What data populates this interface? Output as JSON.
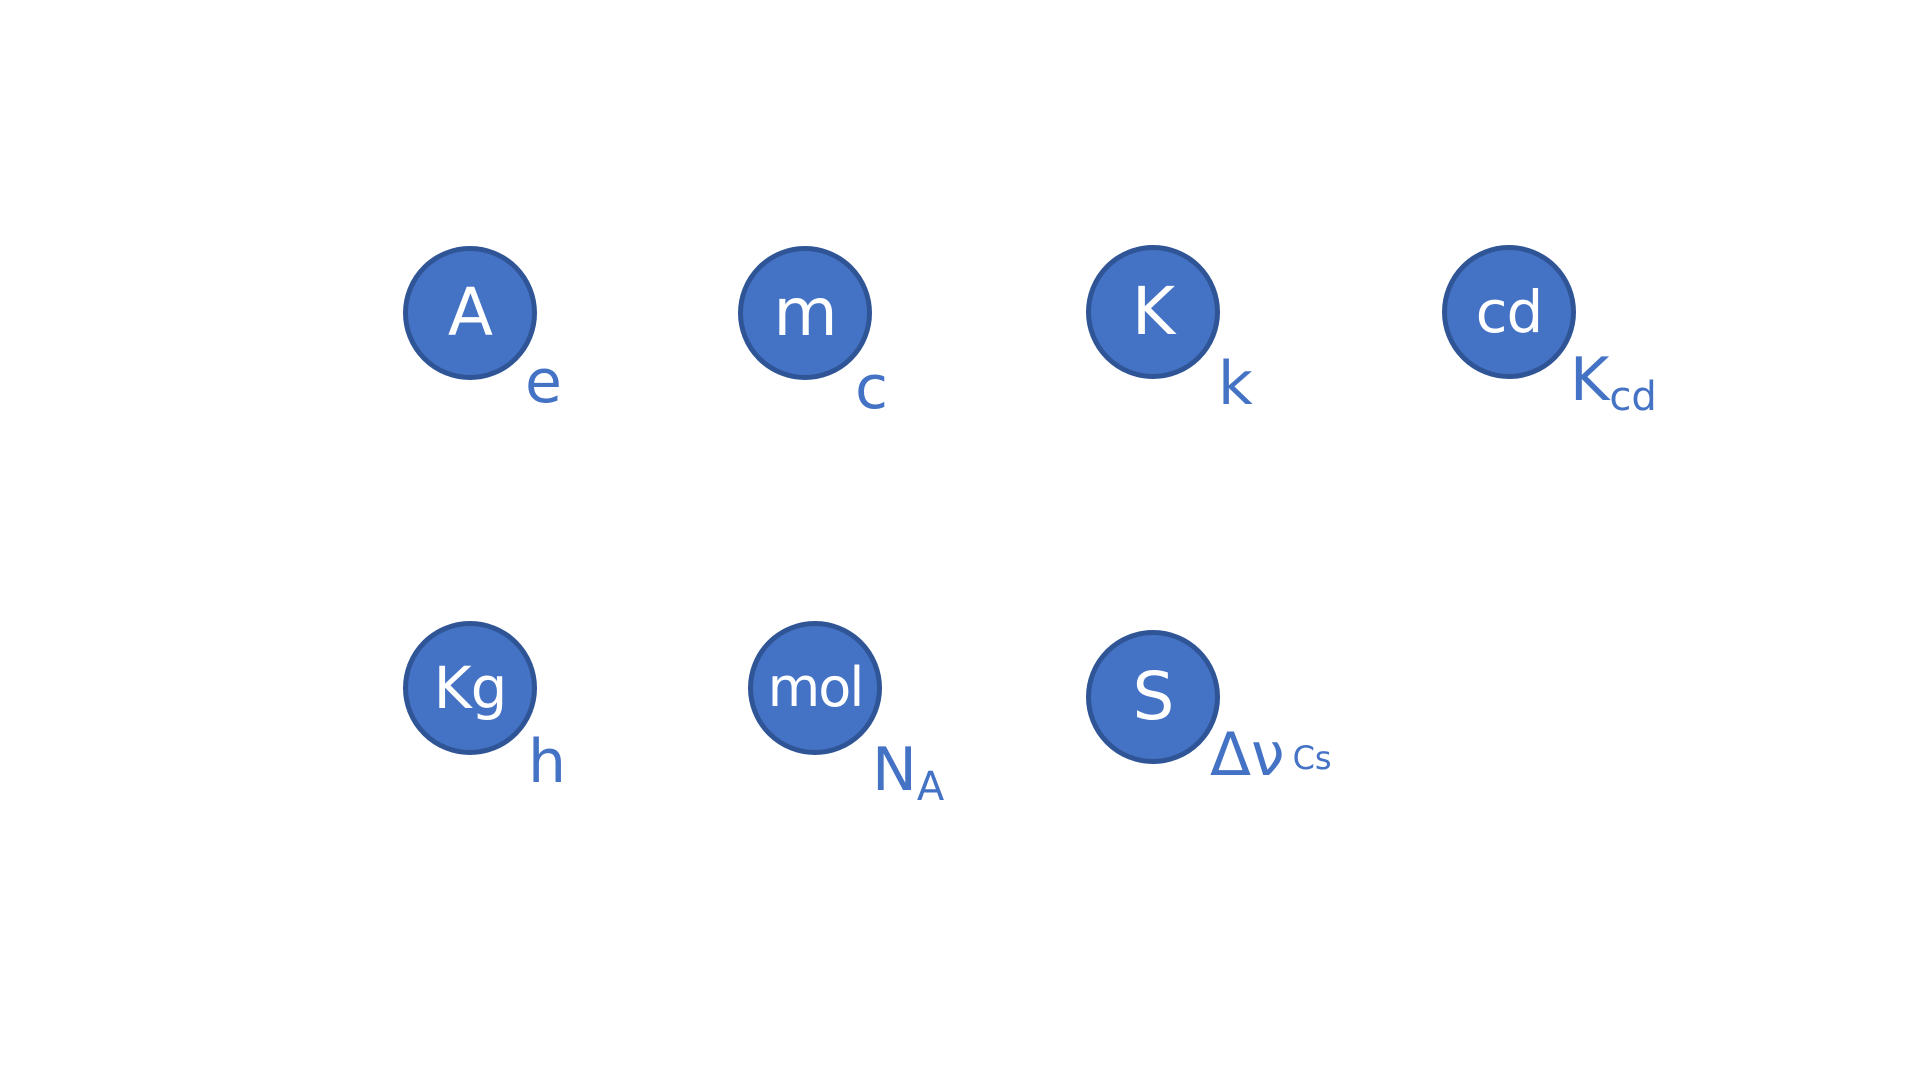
{
  "units": [
    {
      "symbol": "A",
      "constant": "e"
    },
    {
      "symbol": "m",
      "constant": "c"
    },
    {
      "symbol": "K",
      "constant": "k"
    },
    {
      "symbol": "cd",
      "constant": "K",
      "constant_sub": "cd"
    },
    {
      "symbol": "Kg",
      "constant": "h"
    },
    {
      "symbol": "mol",
      "constant": "N",
      "constant_sub": "A"
    },
    {
      "symbol": "S",
      "constant": "Δν",
      "constant_sub": "Cs"
    }
  ],
  "colors": {
    "circle_fill": "#4472c4",
    "circle_border": "#2f5597",
    "unit_text": "#ffffff",
    "constant_text": "#4472c4"
  }
}
